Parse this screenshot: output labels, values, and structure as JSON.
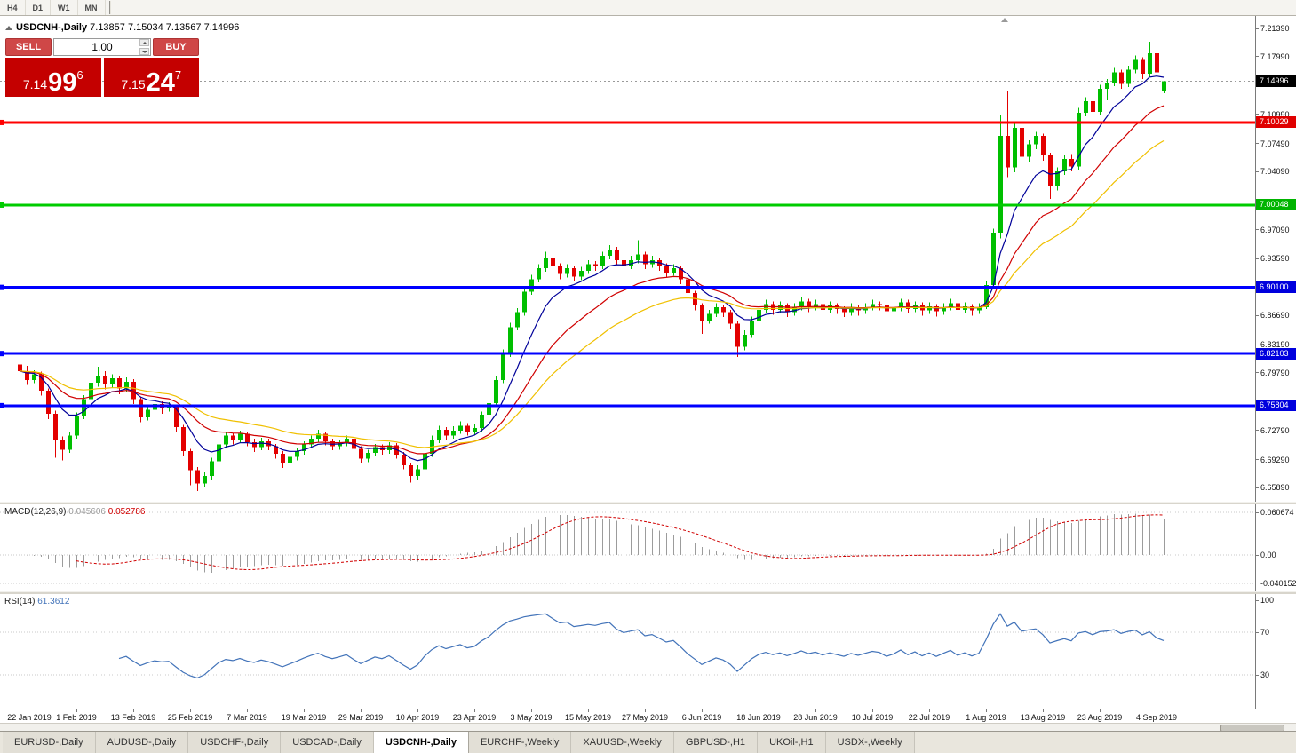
{
  "toolbar": {
    "periods": [
      "H4",
      "D1",
      "W1",
      "MN"
    ]
  },
  "header": {
    "symbol_title": "USDCNH-,Daily",
    "ohlc": "7.13857 7.15034 7.13567 7.14996"
  },
  "one_click": {
    "sell_label": "SELL",
    "buy_label": "BUY",
    "volume": "1.00",
    "sell_price": {
      "prefix": "7.14",
      "big": "99",
      "sup": "6"
    },
    "buy_price": {
      "prefix": "7.15",
      "big": "24",
      "sup": "7"
    }
  },
  "price_axis": {
    "labels": [
      {
        "text": "7.21390",
        "price": 7.2139
      },
      {
        "text": "7.17990",
        "price": 7.1799
      },
      {
        "text": "7.10990",
        "price": 7.1099
      },
      {
        "text": "7.07490",
        "price": 7.0749
      },
      {
        "text": "7.04090",
        "price": 7.0409
      },
      {
        "text": "6.97090",
        "price": 6.9709
      },
      {
        "text": "6.93590",
        "price": 6.9359
      },
      {
        "text": "6.86690",
        "price": 6.8669
      },
      {
        "text": "6.83190",
        "price": 6.8319
      },
      {
        "text": "6.79790",
        "price": 6.7979
      },
      {
        "text": "6.72790",
        "price": 6.7279
      },
      {
        "text": "6.69290",
        "price": 6.6929
      },
      {
        "text": "6.65890",
        "price": 6.6589
      }
    ],
    "badges": [
      {
        "text": "7.14996",
        "price": 7.14996,
        "bg": "#000000"
      },
      {
        "text": "7.10029",
        "price": 7.10029,
        "bg": "#e00000"
      },
      {
        "text": "7.00048",
        "price": 7.00048,
        "bg": "#00b400"
      },
      {
        "text": "6.90100",
        "price": 6.901,
        "bg": "#0000dd"
      },
      {
        "text": "6.82103",
        "price": 6.82103,
        "bg": "#0000dd"
      },
      {
        "text": "6.75804",
        "price": 6.75804,
        "bg": "#0000dd"
      }
    ]
  },
  "hlines": [
    {
      "price": 7.10029,
      "color": "#ff0000",
      "width": 3
    },
    {
      "price": 7.00048,
      "color": "#00cc00",
      "width": 3
    },
    {
      "price": 6.901,
      "color": "#0000ff",
      "width": 3
    },
    {
      "price": 6.82103,
      "color": "#0000ff",
      "width": 3
    },
    {
      "price": 6.75804,
      "color": "#0000ff",
      "width": 3
    }
  ],
  "indicator_macd": {
    "label": "MACD(12,26,9)",
    "value_main": "0.045606",
    "value_signal": "0.052786",
    "axis_labels": [
      {
        "text": "0.060674",
        "value": 0.060674
      },
      {
        "text": "0.00",
        "value": 0
      },
      {
        "text": "-0.040152",
        "value": -0.040152
      }
    ]
  },
  "indicator_rsi": {
    "label": "RSI(14)",
    "value": "61.3612",
    "axis_labels": [
      {
        "text": "100",
        "value": 100
      },
      {
        "text": "70",
        "value": 70
      },
      {
        "text": "30",
        "value": 30
      }
    ],
    "levels": [
      70,
      30
    ]
  },
  "date_axis": {
    "labels": [
      "22 Jan 2019",
      "1 Feb 2019",
      "13 Feb 2019",
      "25 Feb 2019",
      "7 Mar 2019",
      "19 Mar 2019",
      "29 Mar 2019",
      "10 Apr 2019",
      "23 Apr 2019",
      "3 May 2019",
      "15 May 2019",
      "27 May 2019",
      "6 Jun 2019",
      "18 Jun 2019",
      "28 Jun 2019",
      "10 Jul 2019",
      "22 Jul 2019",
      "1 Aug 2019",
      "13 Aug 2019",
      "23 Aug 2019",
      "4 Sep 2019"
    ]
  },
  "tabs": {
    "items": [
      {
        "label": "EURUSD-,Daily",
        "active": false
      },
      {
        "label": "AUDUSD-,Daily",
        "active": false
      },
      {
        "label": "USDCHF-,Daily",
        "active": false
      },
      {
        "label": "USDCAD-,Daily",
        "active": false
      },
      {
        "label": "USDCNH-,Daily",
        "active": true
      },
      {
        "label": "EURCHF-,Weekly",
        "active": false
      },
      {
        "label": "XAUUSD-,Weekly",
        "active": false
      },
      {
        "label": "GBPUSD-,H1",
        "active": false
      },
      {
        "label": "UKOil-,H1",
        "active": false
      },
      {
        "label": "USDX-,Weekly",
        "active": false
      }
    ]
  },
  "colors": {
    "up": "#00bf00",
    "down": "#e30000",
    "ma_fast": "#000099",
    "ma_mid": "#d00000",
    "ma_slow": "#f0c000",
    "macd_hist": "#9c9c9c",
    "macd_signal": "#d00000",
    "rsi_line": "#4273b9",
    "bid_line": "#9a9a9a",
    "level_dotted": "#c8c8c8"
  },
  "chart_data": {
    "type": "candlestick",
    "symbol": "USDCNH-",
    "timeframe": "Daily",
    "current_bar": {
      "open": 7.13857,
      "high": 7.15034,
      "low": 7.13567,
      "close": 7.14996
    },
    "y_range": [
      6.642,
      7.229
    ],
    "bars_per_tick": 8,
    "moving_averages": [
      {
        "period": 8,
        "method": "ema"
      },
      {
        "period": 18,
        "method": "ema"
      },
      {
        "period": 30,
        "method": "ema"
      }
    ],
    "macd_params": {
      "fast": 12,
      "slow": 26,
      "signal": 9
    },
    "rsi_params": {
      "period": 14
    },
    "horizontal_levels": [
      7.10029,
      7.00048,
      6.901,
      6.82103,
      6.75804
    ],
    "candles": [
      [
        6.808,
        6.818,
        6.795,
        6.8
      ],
      [
        6.8,
        6.806,
        6.783,
        6.789
      ],
      [
        6.789,
        6.801,
        6.785,
        6.796
      ],
      [
        6.796,
        6.799,
        6.77,
        6.776
      ],
      [
        6.776,
        6.779,
        6.742,
        6.748
      ],
      [
        6.748,
        6.752,
        6.695,
        6.716
      ],
      [
        6.716,
        6.721,
        6.692,
        6.705
      ],
      [
        6.705,
        6.727,
        6.701,
        6.722
      ],
      [
        6.722,
        6.75,
        6.718,
        6.746
      ],
      [
        6.746,
        6.771,
        6.742,
        6.766
      ],
      [
        6.766,
        6.79,
        6.762,
        6.786
      ],
      [
        6.786,
        6.805,
        6.781,
        6.794
      ],
      [
        6.794,
        6.8,
        6.778,
        6.784
      ],
      [
        6.784,
        6.796,
        6.78,
        6.791
      ],
      [
        6.791,
        6.794,
        6.772,
        6.779
      ],
      [
        6.779,
        6.792,
        6.775,
        6.787
      ],
      [
        6.787,
        6.79,
        6.76,
        6.766
      ],
      [
        6.766,
        6.769,
        6.738,
        6.744
      ],
      [
        6.744,
        6.758,
        6.74,
        6.753
      ],
      [
        6.753,
        6.765,
        6.749,
        6.76
      ],
      [
        6.76,
        6.763,
        6.748,
        6.755
      ],
      [
        6.755,
        6.762,
        6.751,
        6.757
      ],
      [
        6.757,
        6.759,
        6.726,
        6.732
      ],
      [
        6.732,
        6.735,
        6.697,
        6.703
      ],
      [
        6.703,
        6.706,
        6.662,
        6.68
      ],
      [
        6.68,
        6.684,
        6.655,
        6.664
      ],
      [
        6.664,
        6.678,
        6.659,
        6.673
      ],
      [
        6.673,
        6.695,
        6.669,
        6.691
      ],
      [
        6.691,
        6.715,
        6.687,
        6.711
      ],
      [
        6.711,
        6.727,
        6.707,
        6.722
      ],
      [
        6.722,
        6.725,
        6.711,
        6.717
      ],
      [
        6.717,
        6.728,
        6.713,
        6.724
      ],
      [
        6.724,
        6.727,
        6.709,
        6.714
      ],
      [
        6.714,
        6.718,
        6.702,
        6.708
      ],
      [
        6.708,
        6.719,
        6.704,
        6.715
      ],
      [
        6.715,
        6.718,
        6.704,
        6.709
      ],
      [
        6.709,
        6.712,
        6.694,
        6.7
      ],
      [
        6.7,
        6.703,
        6.683,
        6.689
      ],
      [
        6.689,
        6.7,
        6.685,
        6.696
      ],
      [
        6.696,
        6.707,
        6.692,
        6.703
      ],
      [
        6.703,
        6.715,
        6.699,
        6.711
      ],
      [
        6.711,
        6.722,
        6.707,
        6.718
      ],
      [
        6.718,
        6.729,
        6.714,
        6.724
      ],
      [
        6.724,
        6.727,
        6.71,
        6.715
      ],
      [
        6.715,
        6.718,
        6.704,
        6.709
      ],
      [
        6.709,
        6.717,
        6.705,
        6.713
      ],
      [
        6.713,
        6.722,
        6.709,
        6.718
      ],
      [
        6.718,
        6.721,
        6.701,
        6.706
      ],
      [
        6.706,
        6.709,
        6.689,
        6.694
      ],
      [
        6.694,
        6.705,
        6.69,
        6.701
      ],
      [
        6.701,
        6.712,
        6.697,
        6.708
      ],
      [
        6.708,
        6.711,
        6.699,
        6.704
      ],
      [
        6.704,
        6.714,
        6.7,
        6.71
      ],
      [
        6.71,
        6.713,
        6.694,
        6.699
      ],
      [
        6.699,
        6.702,
        6.681,
        6.686
      ],
      [
        6.686,
        6.689,
        6.665,
        6.673
      ],
      [
        6.673,
        6.686,
        6.669,
        6.681
      ],
      [
        6.681,
        6.704,
        6.677,
        6.7
      ],
      [
        6.7,
        6.722,
        6.696,
        6.717
      ],
      [
        6.717,
        6.734,
        6.713,
        6.729
      ],
      [
        6.729,
        6.732,
        6.717,
        6.722
      ],
      [
        6.722,
        6.733,
        6.718,
        6.728
      ],
      [
        6.728,
        6.739,
        6.724,
        6.734
      ],
      [
        6.734,
        6.737,
        6.722,
        6.727
      ],
      [
        6.727,
        6.736,
        6.723,
        6.731
      ],
      [
        6.731,
        6.751,
        6.727,
        6.747
      ],
      [
        6.747,
        6.766,
        6.743,
        6.761
      ],
      [
        6.761,
        6.794,
        6.757,
        6.789
      ],
      [
        6.789,
        6.826,
        6.785,
        6.821
      ],
      [
        6.821,
        6.858,
        6.817,
        6.853
      ],
      [
        6.853,
        6.876,
        6.849,
        6.871
      ],
      [
        6.871,
        6.901,
        6.867,
        6.896
      ],
      [
        6.896,
        6.916,
        6.892,
        6.911
      ],
      [
        6.911,
        6.929,
        6.907,
        6.924
      ],
      [
        6.924,
        6.944,
        6.92,
        6.937
      ],
      [
        6.937,
        6.94,
        6.921,
        6.927
      ],
      [
        6.927,
        6.93,
        6.911,
        6.917
      ],
      [
        6.917,
        6.929,
        6.913,
        6.924
      ],
      [
        6.924,
        6.927,
        6.908,
        6.914
      ],
      [
        6.914,
        6.926,
        6.91,
        6.921
      ],
      [
        6.921,
        6.934,
        6.917,
        6.929
      ],
      [
        6.929,
        6.933,
        6.921,
        6.927
      ],
      [
        6.927,
        6.944,
        6.923,
        6.939
      ],
      [
        6.939,
        6.952,
        6.935,
        6.947
      ],
      [
        6.947,
        6.95,
        6.928,
        6.934
      ],
      [
        6.934,
        6.937,
        6.921,
        6.927
      ],
      [
        6.927,
        6.939,
        6.923,
        6.934
      ],
      [
        6.934,
        6.958,
        6.93,
        6.941
      ],
      [
        6.941,
        6.944,
        6.923,
        6.929
      ],
      [
        6.929,
        6.939,
        6.925,
        6.934
      ],
      [
        6.934,
        6.937,
        6.921,
        6.927
      ],
      [
        6.927,
        6.93,
        6.913,
        6.919
      ],
      [
        6.919,
        6.929,
        6.915,
        6.924
      ],
      [
        6.924,
        6.927,
        6.905,
        6.911
      ],
      [
        6.911,
        6.914,
        6.889,
        6.894
      ],
      [
        6.894,
        6.897,
        6.873,
        6.879
      ],
      [
        6.879,
        6.882,
        6.845,
        6.861
      ],
      [
        6.861,
        6.874,
        6.857,
        6.869
      ],
      [
        6.869,
        6.882,
        6.865,
        6.877
      ],
      [
        6.877,
        6.88,
        6.865,
        6.871
      ],
      [
        6.871,
        6.874,
        6.851,
        6.857
      ],
      [
        6.857,
        6.86,
        6.817,
        6.829
      ],
      [
        6.829,
        6.849,
        6.825,
        6.844
      ],
      [
        6.844,
        6.866,
        6.84,
        6.861
      ],
      [
        6.861,
        6.879,
        6.857,
        6.874
      ],
      [
        6.874,
        6.886,
        6.87,
        6.881
      ],
      [
        6.881,
        6.884,
        6.868,
        6.874
      ],
      [
        6.874,
        6.884,
        6.87,
        6.879
      ],
      [
        6.879,
        6.882,
        6.865,
        6.871
      ],
      [
        6.871,
        6.882,
        6.867,
        6.877
      ],
      [
        6.877,
        6.889,
        6.873,
        6.884
      ],
      [
        6.884,
        6.887,
        6.871,
        6.877
      ],
      [
        6.877,
        6.886,
        6.873,
        6.881
      ],
      [
        6.881,
        6.884,
        6.868,
        6.874
      ],
      [
        6.874,
        6.884,
        6.87,
        6.879
      ],
      [
        6.879,
        6.882,
        6.869,
        6.875
      ],
      [
        6.875,
        6.878,
        6.865,
        6.871
      ],
      [
        6.871,
        6.882,
        6.867,
        6.877
      ],
      [
        6.877,
        6.88,
        6.867,
        6.873
      ],
      [
        6.873,
        6.882,
        6.869,
        6.877
      ],
      [
        6.877,
        6.886,
        6.873,
        6.881
      ],
      [
        6.881,
        6.884,
        6.873,
        6.879
      ],
      [
        6.879,
        6.883,
        6.866,
        6.872
      ],
      [
        6.872,
        6.881,
        6.868,
        6.876
      ],
      [
        6.876,
        6.887,
        6.872,
        6.883
      ],
      [
        6.883,
        6.886,
        6.87,
        6.875
      ],
      [
        6.875,
        6.884,
        6.871,
        6.88
      ],
      [
        6.88,
        6.883,
        6.867,
        6.873
      ],
      [
        6.873,
        6.883,
        6.869,
        6.878
      ],
      [
        6.878,
        6.881,
        6.866,
        6.872
      ],
      [
        6.872,
        6.882,
        6.868,
        6.877
      ],
      [
        6.877,
        6.887,
        6.873,
        6.882
      ],
      [
        6.882,
        6.885,
        6.869,
        6.874
      ],
      [
        6.874,
        6.883,
        6.87,
        6.878
      ],
      [
        6.878,
        6.881,
        6.867,
        6.873
      ],
      [
        6.873,
        6.882,
        6.869,
        6.877
      ],
      [
        6.877,
        6.909,
        6.875,
        6.904
      ],
      [
        6.904,
        6.972,
        6.9,
        6.967
      ],
      [
        6.967,
        7.11,
        6.96,
        7.084
      ],
      [
        7.084,
        7.139,
        7.034,
        7.046
      ],
      [
        7.046,
        7.099,
        7.04,
        7.094
      ],
      [
        7.094,
        7.097,
        7.048,
        7.059
      ],
      [
        7.059,
        7.079,
        7.053,
        7.074
      ],
      [
        7.074,
        7.089,
        7.068,
        7.084
      ],
      [
        7.084,
        7.087,
        7.054,
        7.061
      ],
      [
        7.061,
        7.064,
        7.008,
        7.024
      ],
      [
        7.024,
        7.046,
        7.018,
        7.041
      ],
      [
        7.041,
        7.061,
        7.037,
        7.056
      ],
      [
        7.056,
        7.062,
        7.041,
        7.047
      ],
      [
        7.047,
        7.118,
        7.043,
        7.112
      ],
      [
        7.112,
        7.131,
        7.108,
        7.126
      ],
      [
        7.126,
        7.129,
        7.107,
        7.113
      ],
      [
        7.113,
        7.146,
        7.109,
        7.141
      ],
      [
        7.141,
        7.153,
        7.127,
        7.148
      ],
      [
        7.148,
        7.166,
        7.144,
        7.161
      ],
      [
        7.161,
        7.164,
        7.141,
        7.147
      ],
      [
        7.147,
        7.169,
        7.143,
        7.164
      ],
      [
        7.164,
        7.181,
        7.16,
        7.176
      ],
      [
        7.176,
        7.179,
        7.153,
        7.159
      ],
      [
        7.159,
        7.198,
        7.155,
        7.184
      ],
      [
        7.184,
        7.196,
        7.155,
        7.161
      ],
      [
        7.13857,
        7.15034,
        7.13567,
        7.14996
      ]
    ]
  }
}
